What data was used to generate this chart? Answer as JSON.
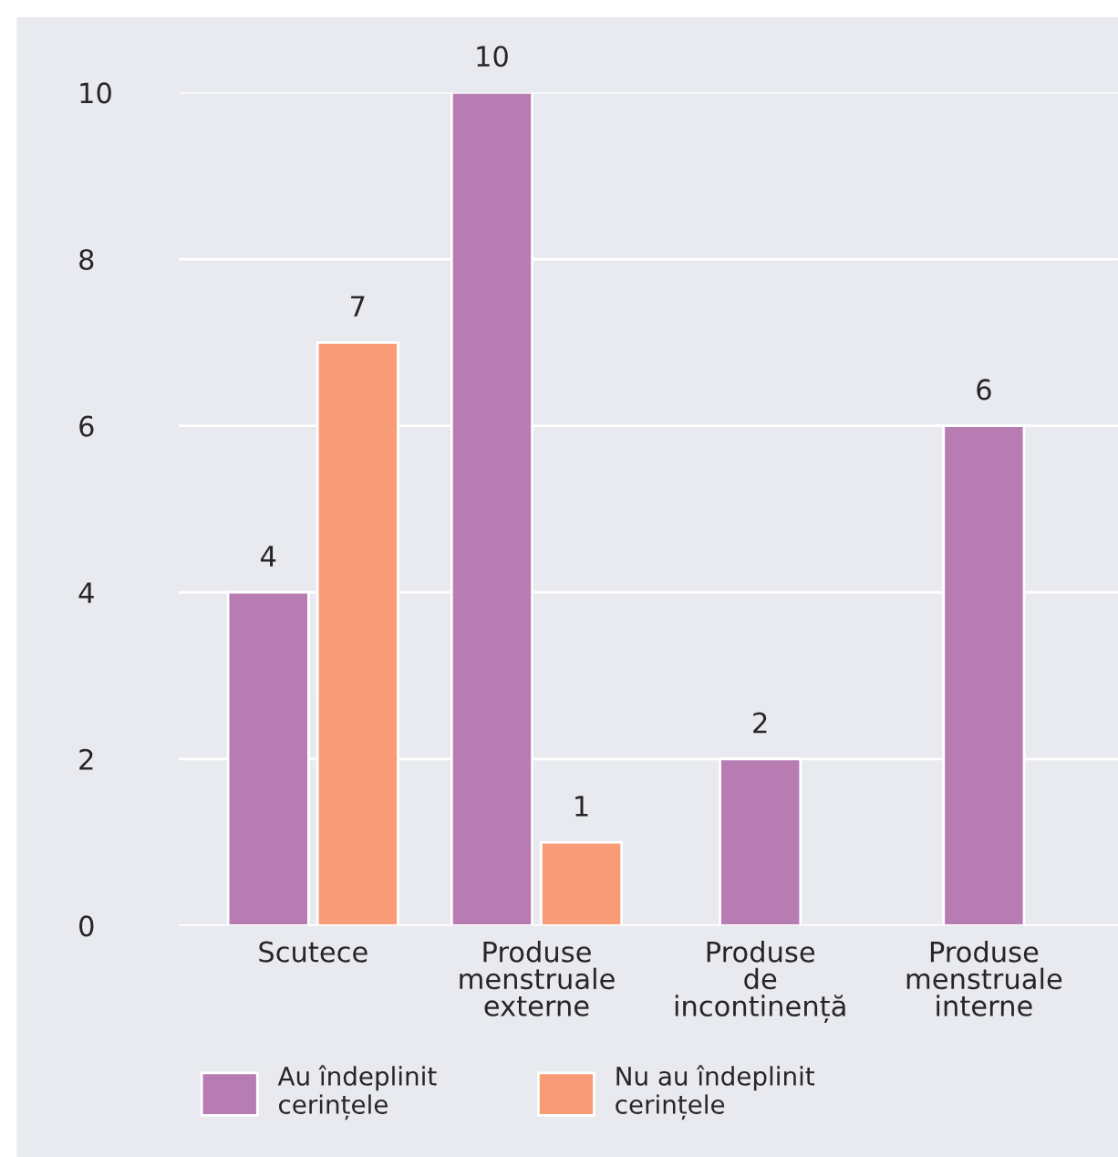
{
  "chart_data": {
    "type": "bar",
    "categories": [
      "Scutece",
      "Produse\nmenstruale\nexterne",
      "Produse\nde\nincontinență",
      "Produse\nmenstruale\ninterne"
    ],
    "series": [
      {
        "name": "Au îndeplinit\ncerințele",
        "color": "#b77db3",
        "values": [
          4,
          10,
          2,
          6
        ]
      },
      {
        "name": "Nu au îndeplinit\ncerințele",
        "color": "#f89c77",
        "values": [
          7,
          1,
          null,
          null
        ]
      }
    ],
    "ylim": [
      0,
      10
    ],
    "yticks": [
      0,
      2,
      4,
      6,
      8,
      10
    ],
    "grid": "y",
    "legend": "bottom",
    "data_labels": true
  }
}
